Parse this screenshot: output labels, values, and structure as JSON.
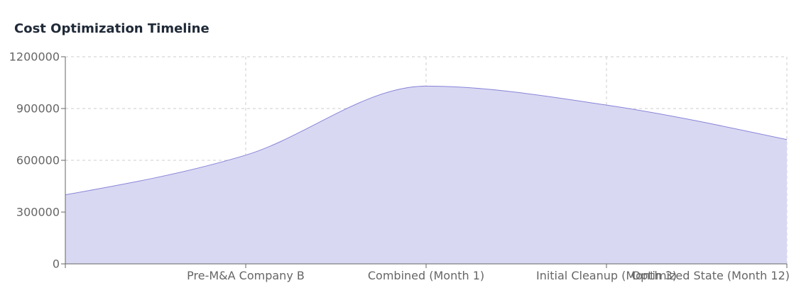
{
  "title": "Cost Optimization Timeline",
  "chart_data": {
    "type": "area",
    "title": "Cost Optimization Timeline",
    "xlabel": "",
    "ylabel": "",
    "categories": [
      "",
      "Pre-M&A Company B",
      "Combined (Month 1)",
      "Initial Cleanup (Month 3)",
      "Optimized State (Month 12)"
    ],
    "series": [
      {
        "values": [
          400000,
          630000,
          1030000,
          920000,
          720000
        ],
        "color": "#8884d8",
        "fill": "#d9d8f2"
      }
    ],
    "ylim": [
      0,
      1200000
    ],
    "yticks": [
      0,
      300000,
      600000,
      900000,
      1200000
    ],
    "grid": true,
    "legend": "none"
  }
}
